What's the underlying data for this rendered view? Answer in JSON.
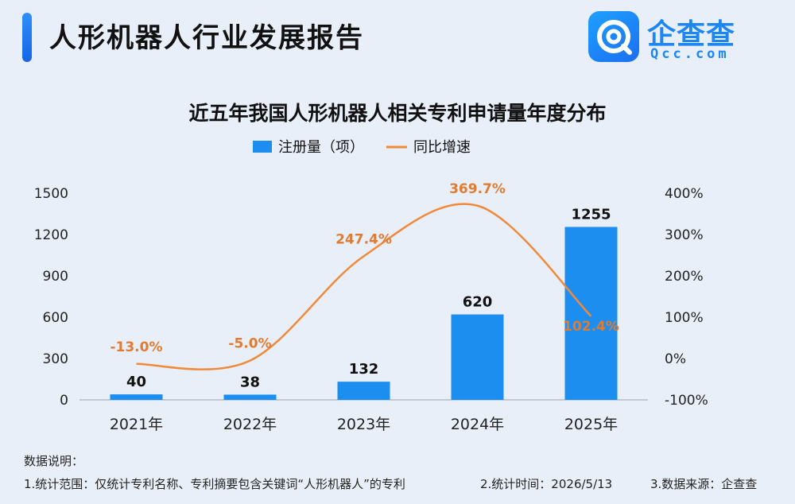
{
  "header": {
    "title": "人形机器人行业发展报告",
    "logo_name": "企查查",
    "logo_url": "Qcc.com"
  },
  "chart_data": {
    "type": "bar",
    "title": "近五年我国人形机器人相关专利申请量年度分布",
    "categories": [
      "2021年",
      "2022年",
      "2023年",
      "2024年",
      "2025年"
    ],
    "series": [
      {
        "name": "注册量（项）",
        "type": "bar",
        "axis": "left",
        "values": [
          40,
          38,
          132,
          620,
          1255
        ],
        "labels": [
          "40",
          "38",
          "132",
          "620",
          "1255"
        ],
        "color": "#1c8ef0"
      },
      {
        "name": "同比增速",
        "type": "line",
        "axis": "right",
        "values": [
          -13.0,
          -5.0,
          247.4,
          369.7,
          102.4
        ],
        "labels": [
          "-13.0%",
          "-5.0%",
          "247.4%",
          "369.7%",
          "102.4%"
        ],
        "color": "#f08a3a"
      }
    ],
    "y_left": {
      "ylim": [
        0,
        1500
      ],
      "ticks": [
        "0",
        "300",
        "600",
        "900",
        "1200",
        "1500"
      ]
    },
    "y_right": {
      "ylim": [
        -100,
        400
      ],
      "ticks": [
        "-100%",
        "0%",
        "100%",
        "200%",
        "300%",
        "400%"
      ]
    },
    "legend_position": "top-center",
    "grid": false
  },
  "footer": {
    "heading": "数据说明：",
    "note1": "1.统计范围：仅统计专利名称、专利摘要包含关键词“人形机器人”的专利",
    "note2": "2.统计时间：2026/5/13",
    "note3": "3.数据来源：企查查"
  }
}
